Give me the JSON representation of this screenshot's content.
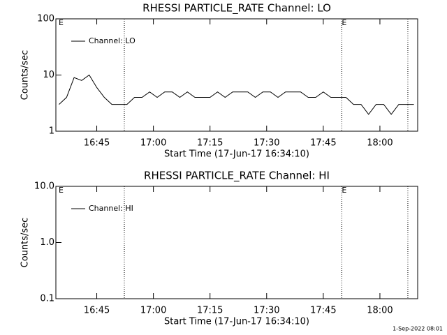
{
  "chart_data": [
    {
      "type": "line",
      "title": "RHESSI PARTICLE_RATE Channel: LO",
      "x_label": "Start Time (17-Jun-17 16:34:10)",
      "y_label": "Counts/sec",
      "log_y": true,
      "legend": "top-left",
      "xlim": [
        34.17,
        130
      ],
      "xticks": [
        {
          "value": 45,
          "label": "16:45"
        },
        {
          "value": 60,
          "label": "17:00"
        },
        {
          "value": 75,
          "label": "17:15"
        },
        {
          "value": 90,
          "label": "17:30"
        },
        {
          "value": 105,
          "label": "17:45"
        },
        {
          "value": 120,
          "label": "18:00"
        }
      ],
      "ylim": [
        1,
        100
      ],
      "yticks": [
        1,
        10,
        100
      ],
      "vlines": [
        52.3,
        109.9,
        127.4
      ],
      "flags": [
        {
          "x": 34.9,
          "label": "E"
        },
        {
          "x": 109.9,
          "label": "E"
        }
      ],
      "x": [
        35,
        37,
        39,
        41,
        43,
        45,
        47,
        49,
        51,
        53,
        55,
        57,
        59,
        61,
        63,
        65,
        67,
        69,
        71,
        73,
        75,
        77,
        79,
        81,
        83,
        85,
        87,
        89,
        91,
        93,
        95,
        97,
        99,
        101,
        103,
        105,
        107,
        109,
        111,
        113,
        115,
        117,
        119,
        121,
        123,
        125,
        127,
        129
      ],
      "series": [
        {
          "name": "Channel: LO",
          "color": "#000000",
          "values": [
            3,
            4,
            9,
            8,
            10,
            6,
            4,
            3,
            3,
            3,
            4,
            4,
            5,
            4,
            5,
            5,
            4,
            5,
            4,
            4,
            4,
            5,
            4,
            5,
            5,
            5,
            4,
            5,
            5,
            4,
            5,
            5,
            5,
            4,
            4,
            5,
            4,
            4,
            4,
            3,
            3,
            2,
            3,
            3,
            2,
            3,
            3,
            3
          ]
        }
      ]
    },
    {
      "type": "line",
      "title": "RHESSI PARTICLE_RATE Channel: HI",
      "x_label": "Start Time (17-Jun-17 16:34:10)",
      "y_label": "Counts/sec",
      "log_y": true,
      "legend": "top-left",
      "xlim": [
        34.17,
        130
      ],
      "xticks": [
        {
          "value": 45,
          "label": "16:45"
        },
        {
          "value": 60,
          "label": "17:00"
        },
        {
          "value": 75,
          "label": "17:15"
        },
        {
          "value": 90,
          "label": "17:30"
        },
        {
          "value": 105,
          "label": "17:45"
        },
        {
          "value": 120,
          "label": "18:00"
        }
      ],
      "ylim": [
        0.1,
        10
      ],
      "yticks": [
        0.1,
        {
          "value": 1,
          "label": "1.0"
        },
        {
          "value": 10,
          "label": "10.0"
        }
      ],
      "vlines": [
        52.3,
        109.9,
        127.4
      ],
      "flags": [
        {
          "x": 34.9,
          "label": "E"
        },
        {
          "x": 109.9,
          "label": "E"
        }
      ],
      "x": [],
      "series": [
        {
          "name": "Channel: HI",
          "color": "#000000",
          "values": []
        }
      ]
    }
  ],
  "footer": "1-Sep-2022 08:01"
}
